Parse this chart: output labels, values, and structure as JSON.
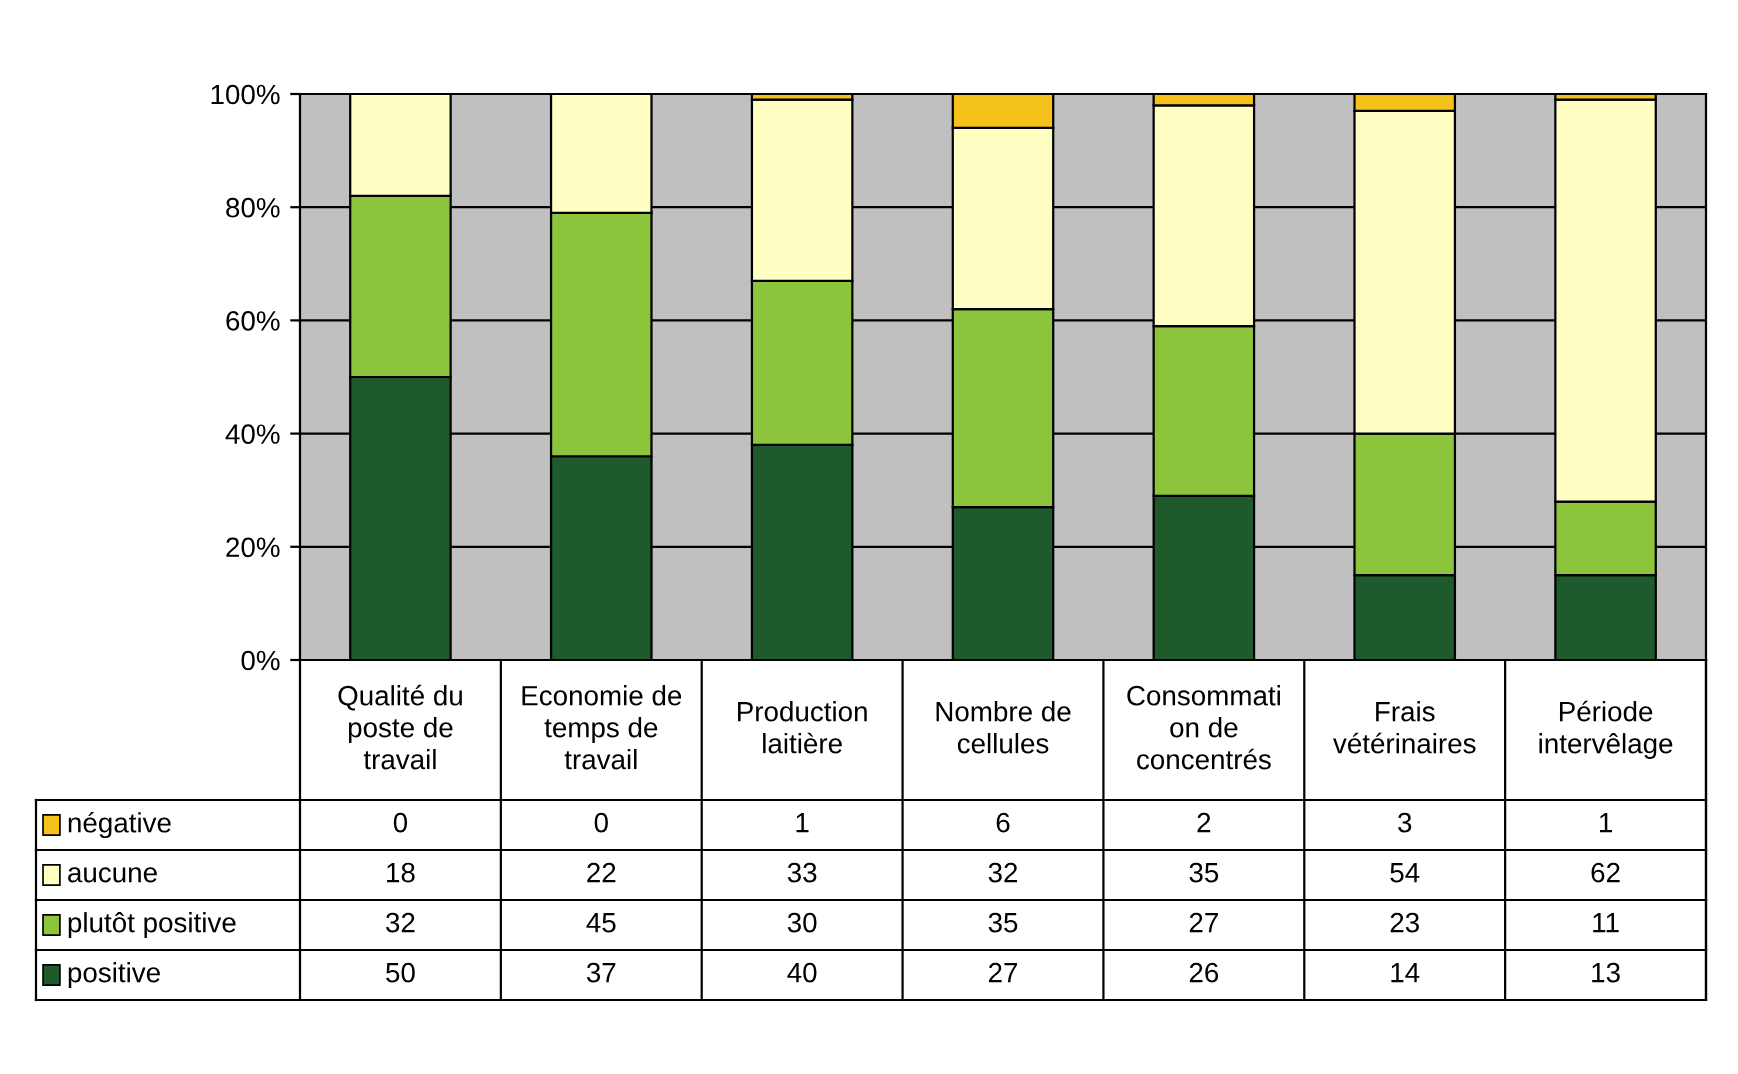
{
  "chart_data": {
    "type": "bar",
    "stacked": true,
    "categories": [
      "Qualité du\nposte de\ntravail",
      "Economie de\ntemps de\ntravail",
      "Production\nlaitière",
      "Nombre de\ncellules",
      "Consommati\non de\nconcentrés",
      "Frais\nvétérinaires",
      "Période\nintervêlage"
    ],
    "series": [
      {
        "name": "positive",
        "color": "#1e5a2c",
        "values": [
          50,
          36,
          38,
          27,
          29,
          15,
          15
        ]
      },
      {
        "name": "plutôt positive",
        "color": "#8cc43c",
        "values": [
          32,
          43,
          29,
          35,
          30,
          25,
          13
        ]
      },
      {
        "name": "aucune",
        "color": "#ffffc4",
        "values": [
          18,
          21,
          32,
          32,
          39,
          57,
          71
        ]
      },
      {
        "name": "négative",
        "color": "#f5c21b",
        "values": [
          0,
          0,
          1,
          6,
          2,
          3,
          1
        ]
      }
    ],
    "annotations": [
      "0",
      "0",
      "1",
      "6",
      "2",
      "3",
      "1",
      "18",
      "22",
      "33",
      "32",
      "35",
      "54",
      "62",
      "32",
      "45",
      "30",
      "35",
      "27",
      "23",
      "11",
      "50",
      "37",
      "40",
      "27",
      "26",
      "14",
      "13"
    ],
    "ylim": [
      0,
      100
    ],
    "yticks": [
      {
        "value": 0,
        "label": "0%"
      },
      {
        "value": 20,
        "label": "20%"
      },
      {
        "value": 40,
        "label": "40%"
      },
      {
        "value": 60,
        "label": "60%"
      },
      {
        "value": 80,
        "label": "80%"
      },
      {
        "value": 100,
        "label": "100%"
      }
    ],
    "grid": "y",
    "legend": "bottom left"
  }
}
